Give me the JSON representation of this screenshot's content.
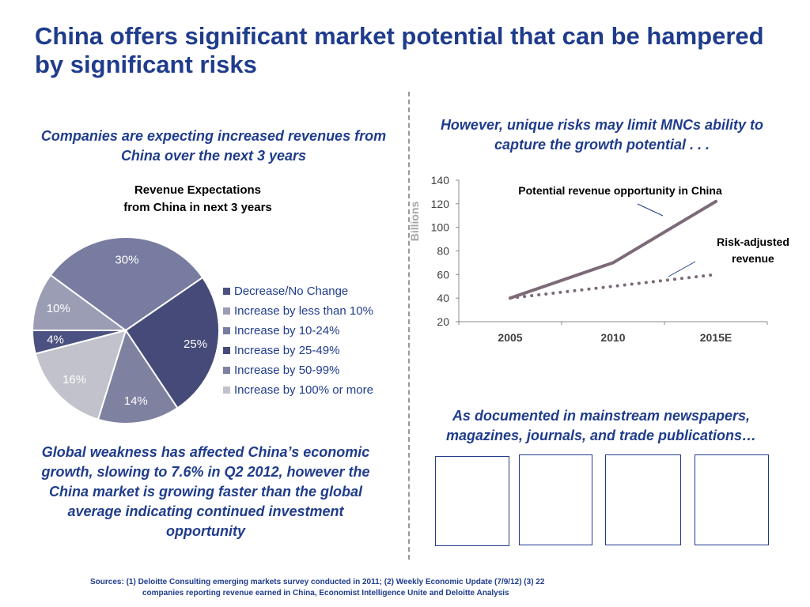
{
  "slide": {
    "title": "China offers significant market potential that can be hampered by significant risks",
    "left_heading": "Companies are expecting increased revenues from China over the next 3 years",
    "right_heading": "However, unique risks may limit MNCs ability to capture the growth potential . . .",
    "bottom_left_text": "Global weakness has affected China’s economic growth, slowing to 7.6% in Q2 2012, however the China market is growing faster than the global average indicating continued investment opportunity",
    "bottom_right_heading": "As documented in mainstream newspapers, magazines, journals, and trade publications…",
    "sources_line1": "Sources: (1) Deloitte Consulting emerging markets survey conducted in 2011; (2) Weekly Economic Update (7/9/12) (3) 22",
    "sources_line2": "companies reporting revenue earned in China, Economist Intelligence Unite and Deloitte Analysis"
  },
  "chart_data": [
    {
      "type": "pie",
      "title": "Revenue Expectations from China in next 3 years",
      "title_lines": [
        "Revenue Expectations",
        "from China in next 3 years"
      ],
      "categories": [
        "Decrease/No Change",
        "Increase by less than 10%",
        "Increase by 10-24%",
        "Increase by 25-49%",
        "Increase by 50-99%",
        "Increase by 100% or more"
      ],
      "values": [
        4,
        10,
        30,
        25,
        14,
        16
      ],
      "labels": [
        "4%",
        "10%",
        "30%",
        "25%",
        "14%",
        "16%"
      ],
      "colors": [
        "#4b5180",
        "#9a9db3",
        "#787ca0",
        "#454a78",
        "#7e819f",
        "#c1c2cb"
      ],
      "legend_placement": "right"
    },
    {
      "type": "line",
      "x": [
        "2005",
        "2010",
        "2015E"
      ],
      "series": [
        {
          "name": "Potential revenue opportunity in China",
          "values": [
            40,
            70,
            122
          ],
          "style": "solid",
          "color": "#7d6a78"
        },
        {
          "name": "Risk-adjusted revenue",
          "values": [
            40,
            50,
            60
          ],
          "style": "dotted",
          "color": "#7d6a78"
        }
      ],
      "ylabel": "Billions",
      "ylim": [
        20,
        140
      ],
      "yticks": [
        20,
        40,
        60,
        80,
        100,
        120,
        140
      ],
      "grid": false
    }
  ]
}
